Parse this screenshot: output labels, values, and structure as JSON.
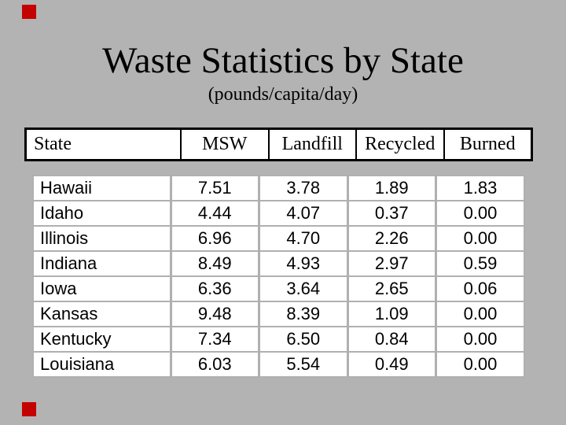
{
  "colors": {
    "background": "#b3b3b3",
    "accent_red": "#c40000",
    "grid_line": "#b0b0b0",
    "table_border": "#000000",
    "cell_bg": "#ffffff",
    "text": "#000000"
  },
  "slide": {
    "title": "Waste Statistics by State",
    "subtitle": "(pounds/capita/day)"
  },
  "table": {
    "headers": [
      "State",
      "MSW",
      "Landfill",
      "Recycled",
      "Burned"
    ],
    "rows": [
      {
        "state": "Hawaii",
        "msw": "7.51",
        "landfill": "3.78",
        "recycled": "1.89",
        "burned": "1.83"
      },
      {
        "state": "Idaho",
        "msw": "4.44",
        "landfill": "4.07",
        "recycled": "0.37",
        "burned": "0.00"
      },
      {
        "state": "Illinois",
        "msw": "6.96",
        "landfill": "4.70",
        "recycled": "2.26",
        "burned": "0.00"
      },
      {
        "state": "Indiana",
        "msw": "8.49",
        "landfill": "4.93",
        "recycled": "2.97",
        "burned": "0.59"
      },
      {
        "state": "Iowa",
        "msw": "6.36",
        "landfill": "3.64",
        "recycled": "2.65",
        "burned": "0.06"
      },
      {
        "state": "Kansas",
        "msw": "9.48",
        "landfill": "8.39",
        "recycled": "1.09",
        "burned": "0.00"
      },
      {
        "state": "Kentucky",
        "msw": "7.34",
        "landfill": "6.50",
        "recycled": "0.84",
        "burned": "0.00"
      },
      {
        "state": "Louisiana",
        "msw": "6.03",
        "landfill": "5.54",
        "recycled": "0.49",
        "burned": "0.00"
      }
    ]
  }
}
